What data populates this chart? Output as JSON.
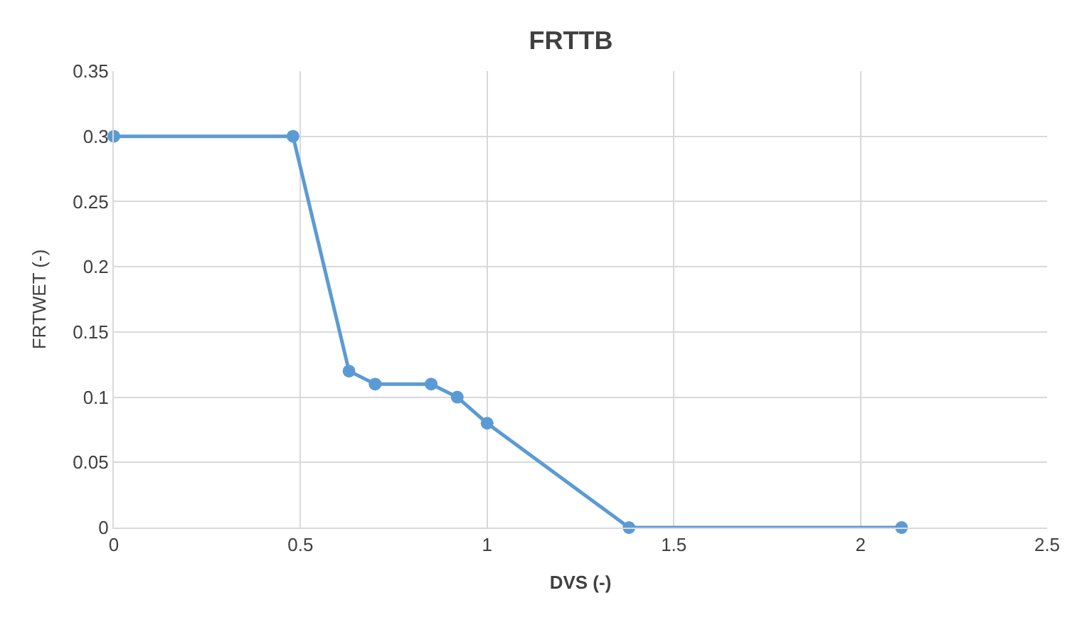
{
  "chart_data": {
    "type": "line",
    "title": "FRTTB",
    "xlabel": "DVS (-)",
    "ylabel": "FRTWET (-)",
    "x": [
      0,
      0.48,
      0.63,
      0.7,
      0.85,
      0.92,
      1.0,
      1.38,
      2.11
    ],
    "series": [
      {
        "color": "#5b9bd5",
        "values": [
          0.3,
          0.3,
          0.12,
          0.11,
          0.11,
          0.1,
          0.08,
          0,
          0
        ]
      }
    ],
    "xlim": [
      0,
      2.5
    ],
    "xticks": [
      0,
      0.5,
      1,
      1.5,
      2,
      2.5
    ],
    "ylim": [
      0,
      0.35
    ],
    "yticks": [
      0,
      0.05,
      0.1,
      0.15,
      0.2,
      0.25,
      0.3,
      0.35
    ],
    "grid": true,
    "marker": "circle",
    "line_style": "solid"
  }
}
